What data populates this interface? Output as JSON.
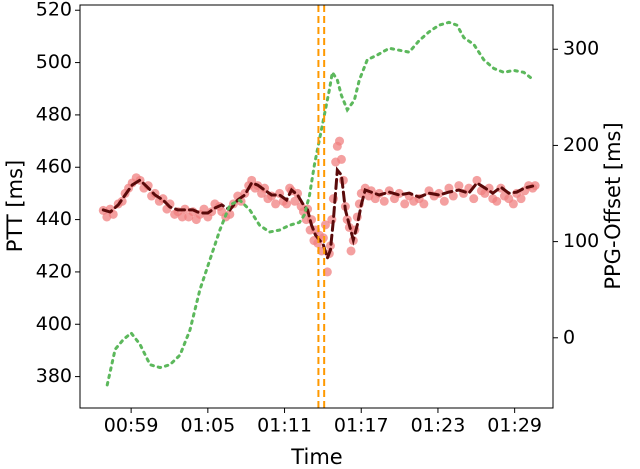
{
  "chart_data": {
    "type": "line",
    "x_label": "Time",
    "y_label": "PTT [ms]",
    "y2_label": "PPG-Offset [ms]",
    "xlim": [
      55,
      92
    ],
    "xticks": [
      {
        "value": 59,
        "label": "00:59"
      },
      {
        "value": 65,
        "label": "01:05"
      },
      {
        "value": 71,
        "label": "01:11"
      },
      {
        "value": 77,
        "label": "01:17"
      },
      {
        "value": 83,
        "label": "01:23"
      },
      {
        "value": 89,
        "label": "01:29"
      }
    ],
    "ylim": [
      368,
      522
    ],
    "yticks": [
      380,
      400,
      420,
      440,
      460,
      480,
      500,
      520
    ],
    "y2lim": [
      -73,
      346
    ],
    "y2ticks": [
      0,
      100,
      200,
      300
    ],
    "grid": false,
    "series": [
      {
        "type": "scatter",
        "color": "#f08080",
        "x": [
          56.82,
          57.1,
          57.36,
          57.6,
          57.99,
          58.3,
          58.53,
          58.8,
          59.08,
          59.4,
          59.7,
          60.0,
          60.33,
          60.6,
          60.87,
          61.2,
          61.49,
          61.8,
          62.04,
          62.4,
          62.66,
          63.0,
          63.21,
          63.5,
          63.83,
          64.1,
          64.38,
          64.7,
          65.0,
          65.3,
          65.55,
          65.9,
          66.09,
          66.4,
          66.72,
          67.0,
          67.34,
          67.6,
          67.89,
          68.2,
          68.43,
          68.7,
          68.9,
          69.2,
          69.44,
          69.7,
          69.99,
          70.3,
          70.61,
          70.9,
          71.16,
          71.4,
          71.55,
          71.8,
          72.02,
          72.3,
          72.48,
          72.7,
          72.8,
          73.0,
          73.11,
          73.3,
          73.42,
          73.6,
          73.73,
          73.9,
          74.04,
          74.2,
          74.35,
          74.5,
          74.59,
          74.7,
          74.82,
          75.0,
          75.13,
          75.3,
          75.45,
          75.6,
          75.76,
          75.9,
          76.07,
          76.2,
          76.38,
          76.5,
          76.69,
          76.85,
          77.0,
          77.31,
          77.6,
          77.78,
          78.1,
          78.41,
          78.8,
          79.19,
          79.6,
          79.97,
          80.4,
          80.75,
          81.1,
          81.53,
          81.9,
          82.3,
          82.7,
          83.08,
          83.5,
          83.86,
          84.2,
          84.64,
          85.0,
          85.42,
          85.8,
          86.05,
          86.4,
          86.67,
          87.0,
          87.29,
          87.6,
          87.92,
          88.2,
          88.54,
          88.9,
          89.16,
          89.5,
          89.79,
          90.1,
          90.41,
          90.6
        ],
        "values": [
          443.5,
          441,
          444,
          442,
          446,
          447,
          450,
          452,
          454,
          456,
          455,
          452,
          453,
          449,
          450,
          447,
          448,
          444,
          446,
          442,
          443,
          441,
          444,
          441,
          443,
          440,
          442,
          444,
          441,
          443,
          446,
          445,
          443,
          441,
          442,
          446,
          449,
          447,
          450,
          453,
          455,
          452,
          453,
          450,
          452,
          448,
          449,
          446,
          450,
          447,
          446,
          452,
          451,
          447,
          450,
          445,
          443,
          440,
          444,
          436,
          440,
          432,
          436,
          431,
          434,
          428,
          433,
          438,
          420,
          427,
          430,
          440,
          448,
          462,
          468,
          470,
          463,
          455,
          445,
          440,
          437,
          428,
          432,
          436,
          441,
          446,
          450,
          452,
          449,
          451,
          448,
          450,
          447,
          451,
          448,
          450,
          446,
          449,
          447,
          448,
          446,
          451,
          449,
          450,
          447,
          452,
          449,
          453,
          450,
          452,
          448,
          455,
          451,
          450,
          452,
          448,
          447,
          452,
          449,
          448,
          446,
          450,
          448,
          451,
          453,
          452,
          453
        ]
      },
      {
        "type": "line",
        "style": "dashed",
        "color": "#5a0a0a",
        "x": [
          56.82,
          57.36,
          57.99,
          58.53,
          59.08,
          59.7,
          60.33,
          60.87,
          61.49,
          62.04,
          62.66,
          63.21,
          63.83,
          64.38,
          65.0,
          65.55,
          66.09,
          66.72,
          67.34,
          67.89,
          68.43,
          68.9,
          69.44,
          69.99,
          70.61,
          71.16,
          71.55,
          72.02,
          72.48,
          72.8,
          73.11,
          73.42,
          73.73,
          74.04,
          74.35,
          74.59,
          74.82,
          75.13,
          75.45,
          75.76,
          76.07,
          76.38,
          76.69,
          77.0,
          77.31,
          77.78,
          78.41,
          79.19,
          79.97,
          80.75,
          81.53,
          82.3,
          83.08,
          83.86,
          84.64,
          85.42,
          86.05,
          86.67,
          87.29,
          87.92,
          88.54,
          89.16,
          89.79,
          90.41
        ],
        "values": [
          443.7,
          442.9,
          445.6,
          449.4,
          453.2,
          455.1,
          452.1,
          449.4,
          447.5,
          444.8,
          443.7,
          443.7,
          443.7,
          442.5,
          442.5,
          444.4,
          445.6,
          443.7,
          447.5,
          449.4,
          454.0,
          453.2,
          451.3,
          449.4,
          449.4,
          447.5,
          451.3,
          449.4,
          445.6,
          443.7,
          437.9,
          434.1,
          432.2,
          430.3,
          425.3,
          428.4,
          439.8,
          458.9,
          457.0,
          443.7,
          437.9,
          432.2,
          437.9,
          445.6,
          451.3,
          450.5,
          449.4,
          450.5,
          449.4,
          450.1,
          448.6,
          450.1,
          449.4,
          450.5,
          451.3,
          450.1,
          454.0,
          452.1,
          450.1,
          452.4,
          450.1,
          450.5,
          452.1,
          452.8
        ]
      },
      {
        "type": "line",
        "style": "dotted",
        "color": "#5cb85c",
        "axis": "y2",
        "x": [
          57.13,
          57.75,
          58.38,
          59,
          59.7,
          60.48,
          61.26,
          62.04,
          62.82,
          63.6,
          64.38,
          65.16,
          65.94,
          66.72,
          67.5,
          68.28,
          69.05,
          69.83,
          70.61,
          71.39,
          72.17,
          72.56,
          72.95,
          73.34,
          73.73,
          74.12,
          74.51,
          74.74,
          75.13,
          75.45,
          75.91,
          76.46,
          76.85,
          77.47,
          78.25,
          79.19,
          79.97,
          80.75,
          81.53,
          82.3,
          83.08,
          83.86,
          84.49,
          85.03,
          85.81,
          86.59,
          87.37,
          88.15,
          88.93,
          89.71,
          90.49
        ],
        "values": [
          -49,
          -12,
          -2,
          5,
          -7,
          -28,
          -31,
          -28,
          -18,
          8,
          50,
          81,
          112,
          138,
          143,
          133,
          117,
          110,
          112,
          117,
          120,
          128,
          148,
          180,
          206,
          232,
          258,
          276,
          268,
          252,
          237,
          247,
          268,
          289,
          294,
          301,
          299,
          297,
          309,
          318,
          325,
          328,
          325,
          312,
          305,
          289,
          280,
          276,
          278,
          276,
          268
        ]
      }
    ],
    "vlines": {
      "color": "#ff9900",
      "x": [
        73.65,
        74.1
      ]
    }
  }
}
